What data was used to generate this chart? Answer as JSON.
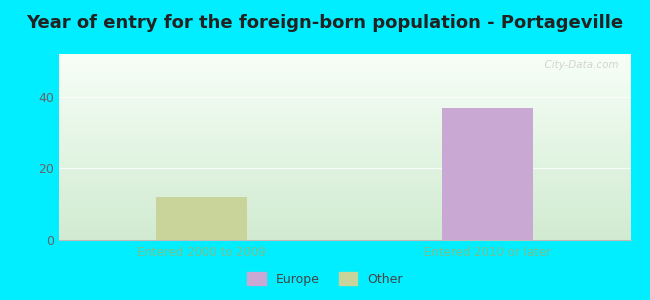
{
  "title": "Year of entry for the foreign-born population - Portageville",
  "categories": [
    "Entered 2000 to 2009",
    "Entered 2010 or later"
  ],
  "europe_values": [
    0,
    37
  ],
  "other_values": [
    12,
    0
  ],
  "europe_color": "#c9a8d4",
  "other_color": "#c8d49a",
  "ylim": [
    0,
    52
  ],
  "yticks": [
    0,
    20,
    40
  ],
  "background_outer": "#00eeff",
  "title_fontsize": 13,
  "tick_label_color": "#7abf8a",
  "watermark": "  City-Data.com",
  "legend_europe": "Europe",
  "legend_other": "Other",
  "bar_width": 0.32
}
